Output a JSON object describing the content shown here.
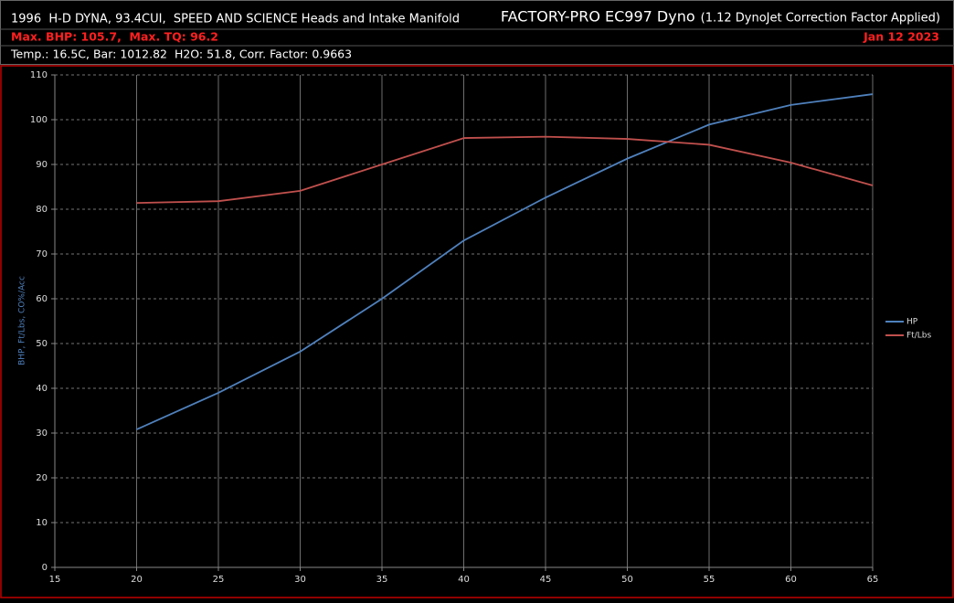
{
  "chart_data": {
    "type": "line",
    "title": "FACTORY-PRO EC997 Dyno",
    "subtitle": "(1.12 DynoJet Correction Factor Applied)",
    "annotations": [
      "1996  H-D DYNA, 93.4CUI,  SPEED AND SCIENCE Heads and Intake Manifold",
      "Max. BHP: 105.7,  Max. TQ: 96.2",
      "Jan 12 2023",
      "Temp.: 16.5C, Bar: 1012.82  H2O: 51.8, Corr. Factor: 0.9663"
    ],
    "y_label": "BHP, Ft/Lbs, CO%/Acc",
    "x": [
      20,
      25,
      30,
      35,
      40,
      45,
      50,
      55,
      60,
      65
    ],
    "series": [
      {
        "name": "HP",
        "color": "#4f81bd",
        "values": [
          30.8,
          39.0,
          48.2,
          60.0,
          73.0,
          82.6,
          91.3,
          98.9,
          103.3,
          105.7
        ]
      },
      {
        "name": "Ft/Lbs",
        "color": "#c0504d",
        "values": [
          81.4,
          81.8,
          84.1,
          90.0,
          95.9,
          96.2,
          95.7,
          94.4,
          90.4,
          85.3
        ]
      }
    ],
    "xlim": [
      15,
      65
    ],
    "xticks": [
      15,
      20,
      25,
      30,
      35,
      40,
      45,
      50,
      55,
      60,
      65
    ],
    "ylim": [
      0,
      110
    ],
    "yticks": [
      0,
      10,
      20,
      30,
      40,
      50,
      60,
      70,
      80,
      90,
      100,
      110
    ],
    "grid": true,
    "legend": "right"
  }
}
